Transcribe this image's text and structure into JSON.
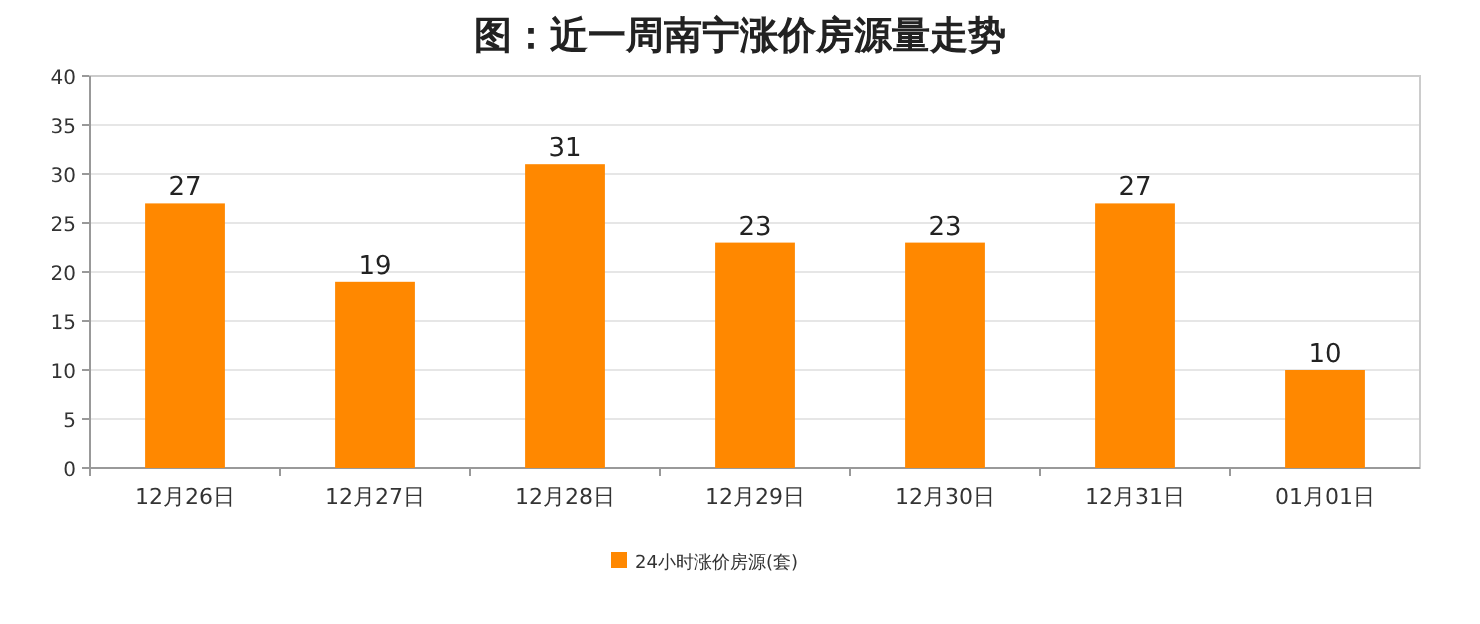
{
  "chart_data": {
    "type": "bar",
    "title": "图：近一周南宁涨价房源量走势",
    "categories": [
      "12月26日",
      "12月27日",
      "12月28日",
      "12月29日",
      "12月30日",
      "12月31日",
      "01月01日"
    ],
    "series": [
      {
        "name": "24小时涨价房源(套)",
        "color": "#ff8800",
        "values": [
          27,
          19,
          31,
          23,
          23,
          27,
          10
        ]
      }
    ],
    "ylim": [
      0,
      40
    ],
    "yticks": [
      0,
      5,
      10,
      15,
      20,
      25,
      30,
      35,
      40
    ],
    "grid": "y",
    "legend": "bottom",
    "data_labels": true
  }
}
